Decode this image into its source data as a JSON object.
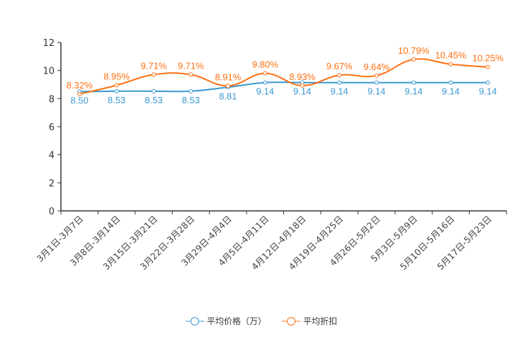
{
  "chart_data": {
    "type": "line",
    "title": "",
    "xlabel": "",
    "ylabel": "",
    "ylim": [
      0,
      12
    ],
    "yticks": [
      0,
      2,
      4,
      6,
      8,
      10,
      12
    ],
    "categories": [
      "3月1日-3月7日",
      "3月8日-3月14日",
      "3月15日-3月21日",
      "3月22日-3月28日",
      "3月29日-4月4日",
      "4月5日-4月11日",
      "4月12日-4月18日",
      "4月19日-4月25日",
      "4月26日-5月2日",
      "5月3日-5月9日",
      "5月10日-5月16日",
      "5月17日-5月23日"
    ],
    "series": [
      {
        "name": "平均价格（万）",
        "color": "#3a98d1",
        "values": [
          8.5,
          8.53,
          8.53,
          8.53,
          8.81,
          9.14,
          9.14,
          9.14,
          9.14,
          9.14,
          9.14,
          9.14
        ],
        "labels": [
          "8.50",
          "8.53",
          "8.53",
          "8.53",
          "8.81",
          "9.14",
          "9.14",
          "9.14",
          "9.14",
          "9.14",
          "9.14",
          "9.14"
        ]
      },
      {
        "name": "平均折扣",
        "color": "#ff7012",
        "values": [
          8.32,
          8.95,
          9.71,
          9.71,
          8.91,
          9.8,
          8.93,
          9.67,
          9.64,
          10.79,
          10.45,
          10.25
        ],
        "labels": [
          "8.32%",
          "8.95%",
          "9.71%",
          "9.71%",
          "8.91%",
          "9.80%",
          "8.93%",
          "9.67%",
          "9.64%",
          "10.79%",
          "10.45%",
          "10.25%"
        ]
      }
    ],
    "legend_position": "bottom-center"
  }
}
